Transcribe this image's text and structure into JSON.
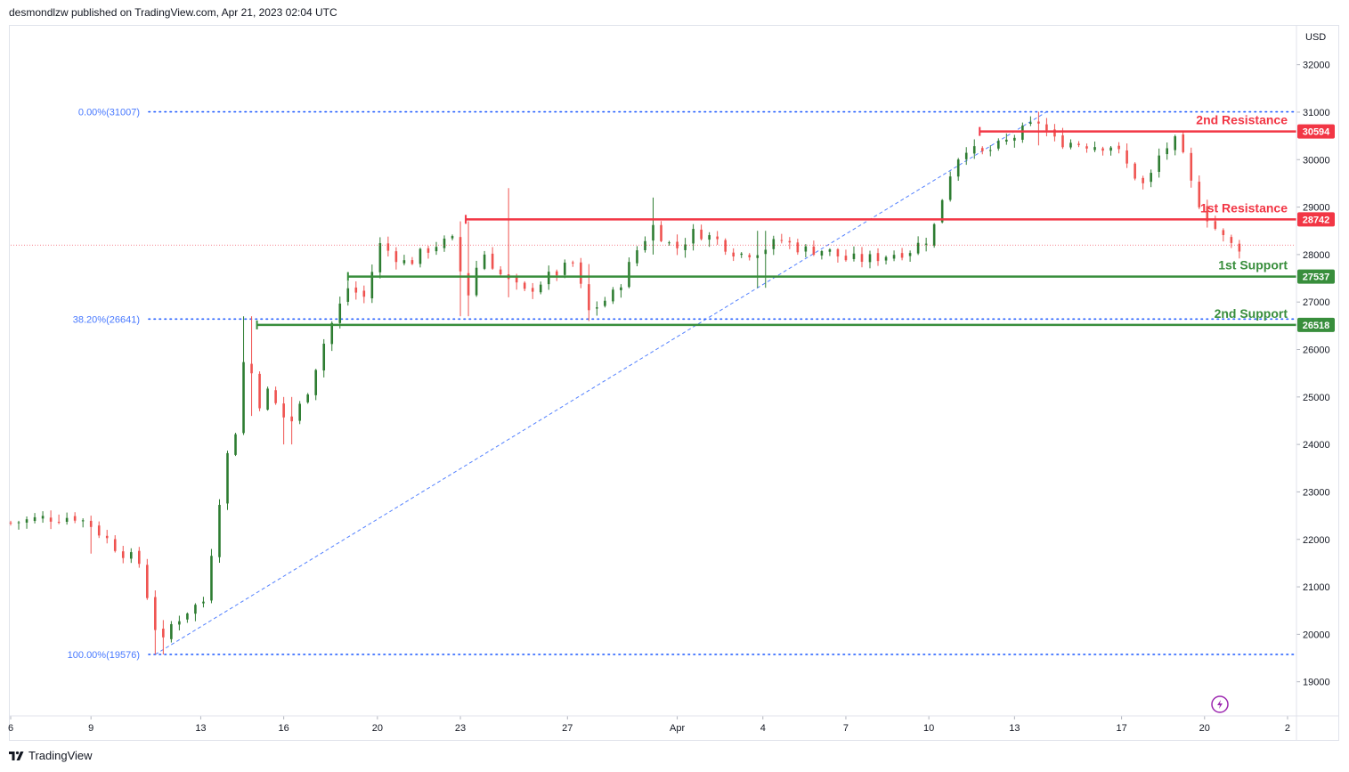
{
  "header": {
    "attribution": "desmondlzw published on TradingView.com, Apr 21, 2023 02:04 UTC"
  },
  "footer": {
    "brand": "TradingView"
  },
  "colors": {
    "up": "#26a69a",
    "up_candle": "#2e7d32",
    "down": "#ef5350",
    "resistance": "#f23645",
    "support": "#388e3c",
    "fib": "#2962ff",
    "grid": "#e0e3eb",
    "axis_text": "#131722",
    "price_line": "#f23645",
    "purple": "#9c27b0"
  },
  "chart_data": {
    "type": "candlestick",
    "currency": "USD",
    "y_ticks": [
      19000,
      20000,
      21000,
      22000,
      23000,
      24000,
      25000,
      26000,
      27000,
      28000,
      29000,
      30000,
      31000,
      32000
    ],
    "ylim": [
      18300,
      32800
    ],
    "x_ticks": [
      "6",
      "9",
      "13",
      "16",
      "20",
      "23",
      "27",
      "Apr",
      "4",
      "7",
      "10",
      "13",
      "17",
      "20",
      "2"
    ],
    "x_tick_index": [
      0,
      30,
      71,
      102,
      137,
      168,
      208,
      249,
      281,
      312,
      343,
      375,
      415,
      446,
      477
    ],
    "bar_count": 480,
    "candle_every": 3,
    "price_path": [
      [
        0,
        22350
      ],
      [
        12,
        22450
      ],
      [
        24,
        22480
      ],
      [
        30,
        22300
      ],
      [
        40,
        21800
      ],
      [
        48,
        21500
      ],
      [
        52,
        20600
      ],
      [
        56,
        19700
      ],
      [
        60,
        20200
      ],
      [
        66,
        20500
      ],
      [
        72,
        20700
      ],
      [
        76,
        22100
      ],
      [
        80,
        23600
      ],
      [
        84,
        24300
      ],
      [
        88,
        26200
      ],
      [
        92,
        24800
      ],
      [
        96,
        25100
      ],
      [
        104,
        24400
      ],
      [
        110,
        25000
      ],
      [
        118,
        26300
      ],
      [
        126,
        27300
      ],
      [
        132,
        27100
      ],
      [
        138,
        28200
      ],
      [
        148,
        27800
      ],
      [
        158,
        28200
      ],
      [
        166,
        28300
      ],
      [
        170,
        27000
      ],
      [
        176,
        28100
      ],
      [
        184,
        27500
      ],
      [
        192,
        27200
      ],
      [
        200,
        27500
      ],
      [
        210,
        27800
      ],
      [
        216,
        26800
      ],
      [
        226,
        27200
      ],
      [
        234,
        28100
      ],
      [
        240,
        28600
      ],
      [
        248,
        28100
      ],
      [
        256,
        28500
      ],
      [
        264,
        28300
      ],
      [
        272,
        28000
      ],
      [
        280,
        28100
      ],
      [
        288,
        28300
      ],
      [
        296,
        28100
      ],
      [
        304,
        28100
      ],
      [
        312,
        27900
      ],
      [
        320,
        27900
      ],
      [
        328,
        28000
      ],
      [
        336,
        28100
      ],
      [
        344,
        28400
      ],
      [
        350,
        29600
      ],
      [
        356,
        30300
      ],
      [
        362,
        30100
      ],
      [
        370,
        30300
      ],
      [
        378,
        30600
      ],
      [
        384,
        30800
      ],
      [
        390,
        30400
      ],
      [
        398,
        30350
      ],
      [
        406,
        30300
      ],
      [
        412,
        30300
      ],
      [
        418,
        29800
      ],
      [
        424,
        29400
      ],
      [
        430,
        30200
      ],
      [
        436,
        30400
      ],
      [
        442,
        29300
      ],
      [
        448,
        28700
      ],
      [
        452,
        28400
      ],
      [
        456,
        28200
      ],
      [
        460,
        28150
      ]
    ],
    "spikes": [
      {
        "i": 30,
        "hi": 22500,
        "lo": 21700
      },
      {
        "i": 56,
        "hi": 20300,
        "lo": 19576
      },
      {
        "i": 88,
        "hi": 26700,
        "lo": 24600
      },
      {
        "i": 104,
        "hi": 25000,
        "lo": 24000
      },
      {
        "i": 170,
        "hi": 28700,
        "lo": 26700
      },
      {
        "i": 186,
        "hi": 29400,
        "lo": 27100
      },
      {
        "i": 216,
        "hi": 27800,
        "lo": 26600
      },
      {
        "i": 240,
        "hi": 29200,
        "lo": 28000
      },
      {
        "i": 280,
        "hi": 28500,
        "lo": 27300
      },
      {
        "i": 384,
        "hi": 31007,
        "lo": 30300
      }
    ],
    "current_price": 28200,
    "levels": [
      {
        "name": "2nd Resistance",
        "value": 30594,
        "label": "30594",
        "kind": "resistance",
        "start_index": 362
      },
      {
        "name": "1st Resistance",
        "value": 28742,
        "label": "28742",
        "kind": "resistance",
        "start_index": 170
      },
      {
        "name": "1st Support",
        "value": 27537,
        "label": "27537",
        "kind": "support",
        "start_index": 126
      },
      {
        "name": "2nd Support",
        "value": 26518,
        "label": "26518",
        "kind": "support",
        "start_index": 92
      }
    ],
    "fib": {
      "start_index": 54,
      "end_index": 387,
      "low": 19576,
      "high": 31007,
      "lines": [
        {
          "label": "0.00%(31007)",
          "value": 31007
        },
        {
          "label": "38.20%(26641)",
          "value": 26641
        },
        {
          "label": "100.00%(19576)",
          "value": 19576
        }
      ]
    }
  }
}
